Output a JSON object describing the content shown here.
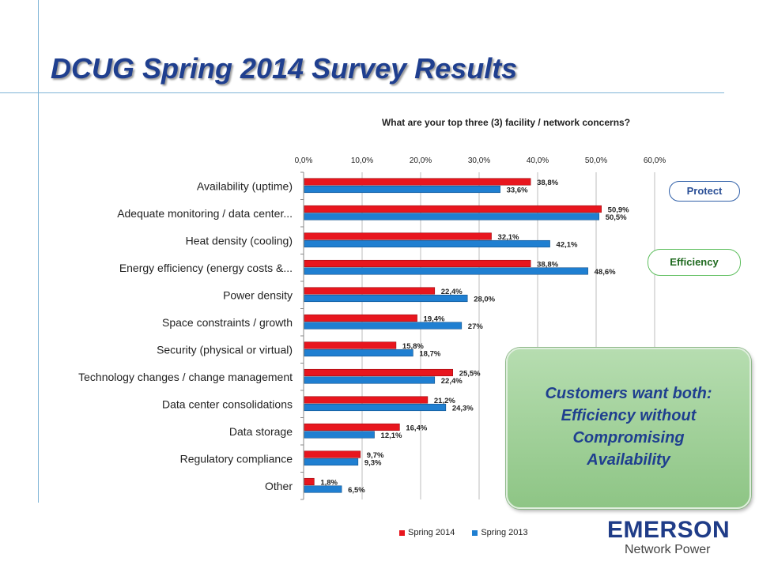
{
  "slide": {
    "title": "DCUG Spring 2014 Survey Results",
    "logo_brand": "EMERSON",
    "logo_sub": "Network Power"
  },
  "badges": {
    "protect": "Protect",
    "efficiency": "Efficiency"
  },
  "callout": {
    "lines": [
      "Customers want both:",
      "Efficiency without",
      "Compromising",
      "Availability"
    ]
  },
  "chart_data": {
    "type": "bar",
    "orientation": "horizontal",
    "title": "What are your top three (3) facility / network concerns?",
    "categories": [
      "Availability (uptime)",
      "Adequate monitoring / data center...",
      "Heat density (cooling)",
      "Energy efficiency (energy costs &...",
      "Power density",
      "Space constraints / growth",
      "Security (physical or virtual)",
      "Technology changes / change management",
      "Data center consolidations",
      "Data storage",
      "Regulatory compliance",
      "Other"
    ],
    "series": [
      {
        "name": "Spring 2014",
        "color": "#e8161e",
        "values": [
          38.8,
          50.9,
          32.1,
          38.8,
          22.4,
          19.4,
          15.8,
          25.5,
          21.2,
          16.4,
          9.7,
          1.8
        ],
        "labels": [
          "38,8%",
          "50,9%",
          "32,1%",
          "38,8%",
          "22,4%",
          "19,4%",
          "15,8%",
          "25,5%",
          "21,2%",
          "16,4%",
          "9,7%",
          "1,8%"
        ]
      },
      {
        "name": "Spring 2013",
        "color": "#1f7fd1",
        "values": [
          33.6,
          50.5,
          42.1,
          48.6,
          28.0,
          27.0,
          18.7,
          22.4,
          24.3,
          12.1,
          9.3,
          6.5
        ],
        "labels": [
          "33,6%",
          "50,5%",
          "42,1%",
          "48,6%",
          "28,0%",
          "27%",
          "18,7%",
          "22,4%",
          "24,3%",
          "12,1%",
          "9,3%",
          "6,5%"
        ]
      }
    ],
    "xlim": [
      0,
      60
    ],
    "xticks": [
      "0,0%",
      "10,0%",
      "20,0%",
      "30,0%",
      "40,0%",
      "50,0%",
      "60,0%"
    ],
    "grid": true,
    "legend_position": "bottom"
  }
}
